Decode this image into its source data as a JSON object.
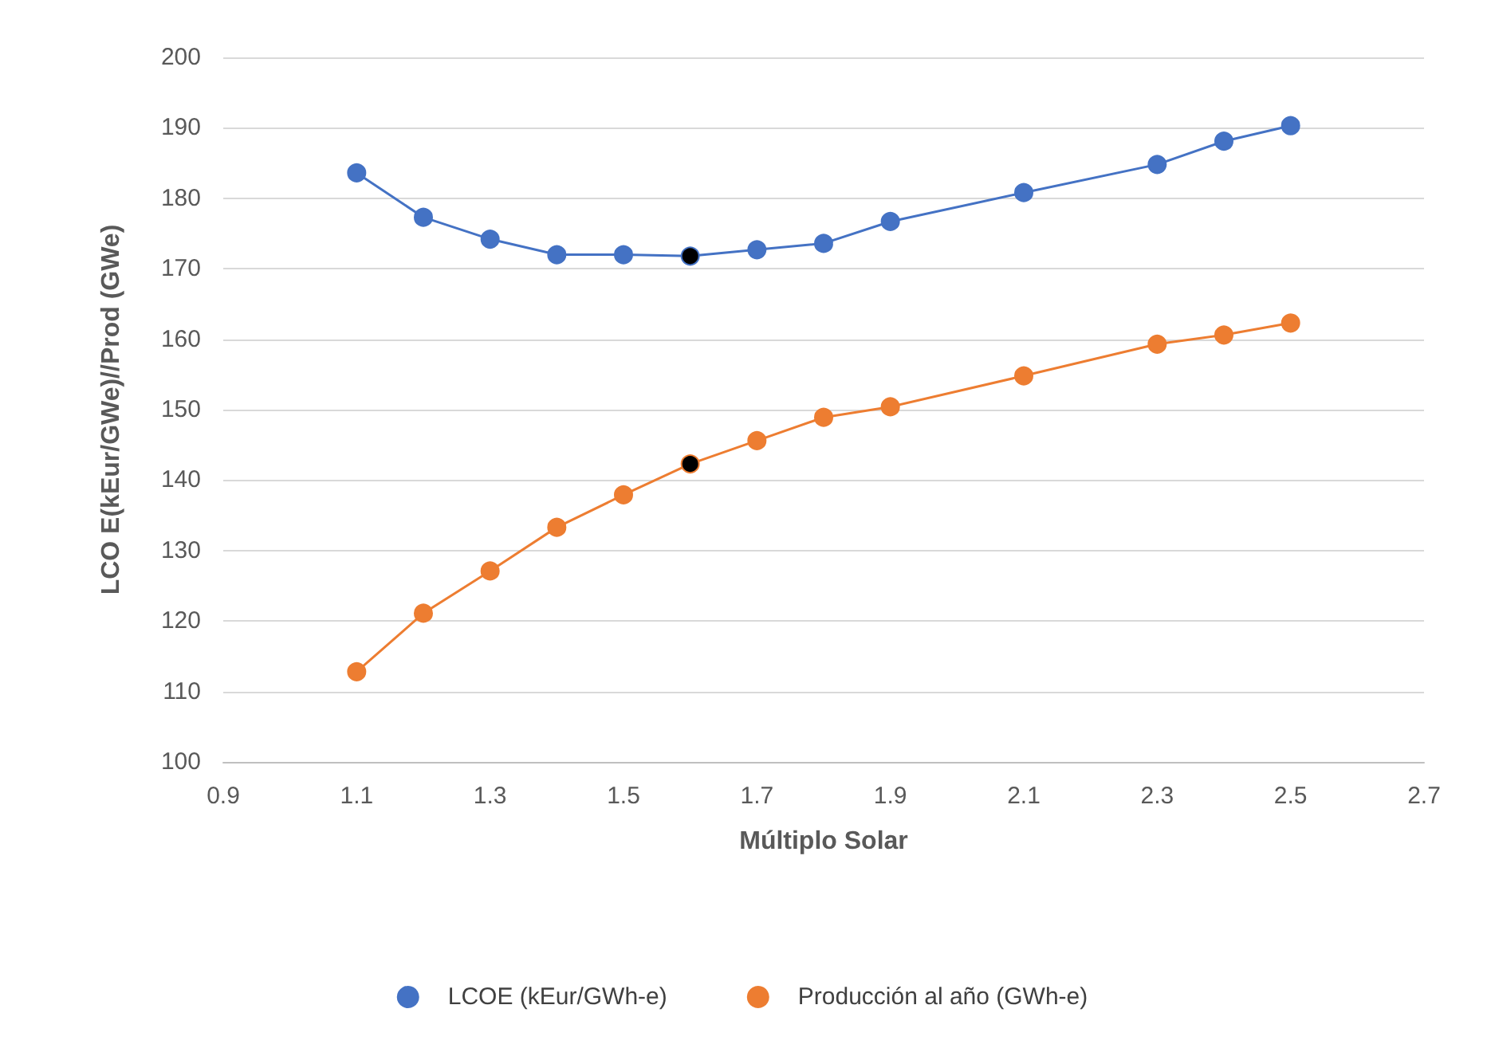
{
  "chart_data": {
    "type": "line",
    "xlabel": "Múltiplo Solar",
    "ylabel": "LCO E(kEur/GWe)//Prod (GWe)",
    "x": [
      1.1,
      1.2,
      1.3,
      1.4,
      1.5,
      1.6,
      1.7,
      1.8,
      1.9,
      2.1,
      2.3,
      2.4,
      2.5
    ],
    "series": [
      {
        "name": "LCOE (kEur/GWh-e)",
        "color": "#4472c4",
        "values": [
          183.6,
          177.3,
          174.2,
          172,
          172,
          171.8,
          172.7,
          173.6,
          176.7,
          180.8,
          184.8,
          188.1,
          190.3
        ],
        "colors": [
          "#4472c4",
          "#4472c4",
          "#4472c4",
          "#4472c4",
          "#4472c4",
          "#000000",
          "#4472c4",
          "#4472c4",
          "#4472c4",
          "#4472c4",
          "#4472c4",
          "#4472c4",
          "#4472c4"
        ]
      },
      {
        "name": "Producción al año (GWh-e)",
        "color": "#ed7d31",
        "values": [
          112.8,
          121.1,
          127.1,
          133.3,
          137.9,
          142.3,
          145.6,
          148.9,
          150.4,
          154.8,
          159.3,
          160.6,
          162.3
        ],
        "colors": [
          "#ed7d31",
          "#ed7d31",
          "#ed7d31",
          "#ed7d31",
          "#ed7d31",
          "#000000",
          "#ed7d31",
          "#ed7d31",
          "#ed7d31",
          "#ed7d31",
          "#ed7d31",
          "#ed7d31",
          "#ed7d31"
        ]
      }
    ],
    "xlim": [
      0.9,
      2.7
    ],
    "xticks": [
      0.9,
      1.1,
      1.3,
      1.5,
      1.7,
      1.9,
      2.1,
      2.3,
      2.5,
      2.7
    ],
    "ylim": [
      100,
      200
    ],
    "yticks": [
      100,
      110,
      120,
      130,
      140,
      150,
      160,
      170,
      180,
      190,
      200
    ],
    "grid": "y",
    "legend": "bottom",
    "marker": "circle",
    "line_style": "solid"
  }
}
